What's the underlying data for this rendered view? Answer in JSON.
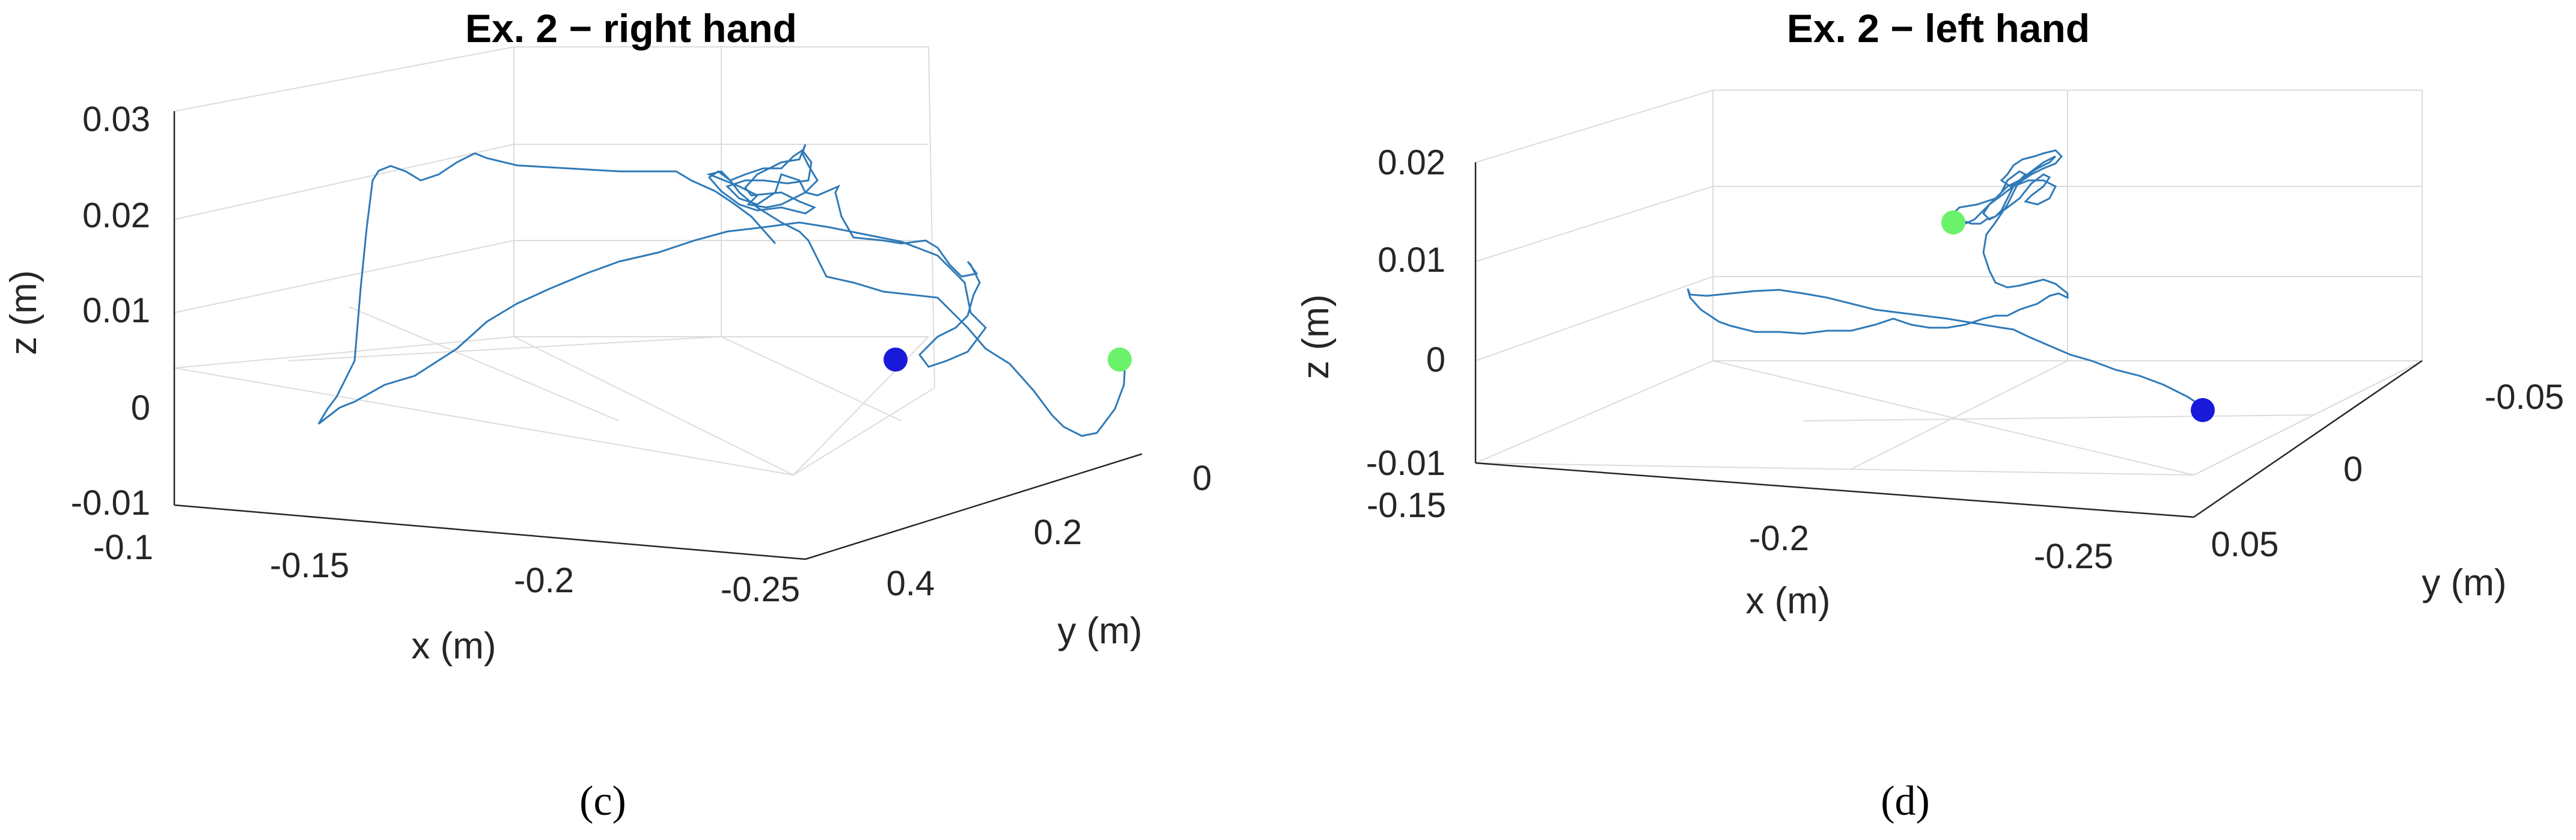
{
  "chart_data": [
    {
      "type": "line",
      "title": "Ex. 2 − right hand",
      "xlabel": "x (m)",
      "ylabel": "y (m)",
      "zlabel": "z (m)",
      "xlim": [
        -0.1,
        -0.27
      ],
      "ylim": [
        0,
        0.4
      ],
      "zlim": [
        -0.01,
        0.03
      ],
      "xticks": [
        "-0.1",
        "-0.15",
        "-0.2",
        "-0.25"
      ],
      "yticks": [
        "0",
        "0.2",
        "0.4"
      ],
      "zticks": [
        "-0.01",
        "0",
        "0.01",
        "0.02",
        "0.03"
      ],
      "grid": true,
      "line_color": "#2f7ab8",
      "start_marker_color": "#6af26a",
      "end_marker_color": "#1a1adb",
      "panel_label": "(c)"
    },
    {
      "type": "line",
      "title": "Ex. 2 − left hand",
      "xlabel": "x (m)",
      "ylabel": "y (m)",
      "zlabel": "z (m)",
      "xlim": [
        -0.15,
        -0.27
      ],
      "ylim": [
        -0.06,
        0.06
      ],
      "zlim": [
        -0.01,
        0.02
      ],
      "xticks": [
        "-0.15",
        "-0.2",
        "-0.25"
      ],
      "yticks": [
        "-0.05",
        "0",
        "0.05"
      ],
      "zticks": [
        "-0.01",
        "0",
        "0.01",
        "0.02"
      ],
      "grid": true,
      "line_color": "#2f7ab8",
      "start_marker_color": "#6af26a",
      "end_marker_color": "#1a1adb",
      "panel_label": "(d)"
    }
  ]
}
